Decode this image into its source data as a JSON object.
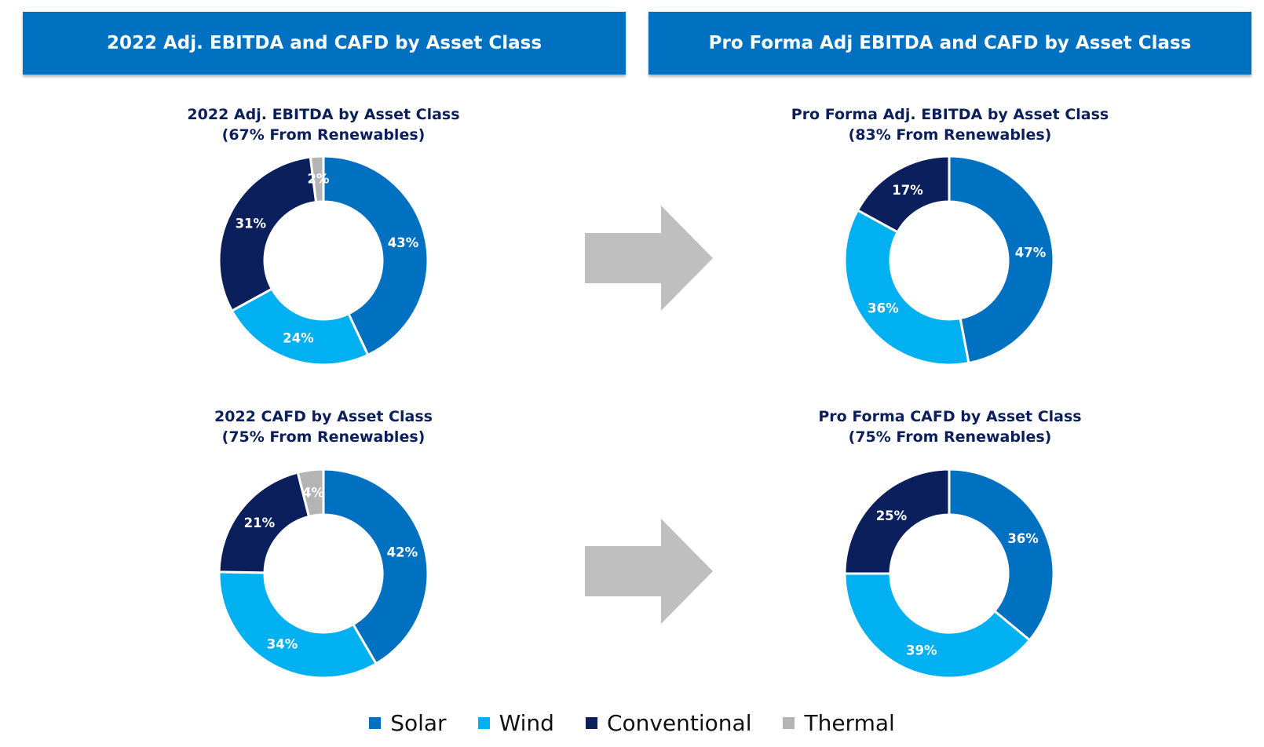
{
  "banners": {
    "left": "2022 Adj. EBITDA and CAFD by Asset Class",
    "right": "Pro Forma Adj EBITDA and CAFD by Asset Class"
  },
  "colors": {
    "Solar": "#0070C0",
    "Wind": "#00B0F0",
    "Conventional": "#0B1F5C",
    "Thermal": "#B4B4B4",
    "banner": "#0070C0",
    "arrow": "#BFBFBF"
  },
  "legend": [
    {
      "name": "Solar",
      "color": "#0070C0"
    },
    {
      "name": "Wind",
      "color": "#00B0F0"
    },
    {
      "name": "Conventional",
      "color": "#0B1F5C"
    },
    {
      "name": "Thermal",
      "color": "#B4B4B4"
    }
  ],
  "chart_data": [
    {
      "type": "pie",
      "title": "2022 Adj. EBITDA by Asset Class",
      "subtitle": "(67% From Renewables)",
      "categories": [
        "Solar",
        "Wind",
        "Conventional",
        "Thermal"
      ],
      "values": [
        43,
        24,
        31,
        2
      ],
      "labels": [
        "43%",
        "24%",
        "31%",
        "2%"
      ]
    },
    {
      "type": "pie",
      "title": "Pro Forma  Adj. EBITDA by Asset Class",
      "subtitle": "(83% From Renewables)",
      "categories": [
        "Solar",
        "Wind",
        "Conventional"
      ],
      "values": [
        47,
        36,
        17
      ],
      "labels": [
        "47%",
        "36%",
        "17%"
      ]
    },
    {
      "type": "pie",
      "title": "2022 CAFD by Asset Class",
      "subtitle": "(75% From Renewables)",
      "categories": [
        "Solar",
        "Wind",
        "Conventional",
        "Thermal"
      ],
      "values": [
        42,
        34,
        21,
        4
      ],
      "labels": [
        "42%",
        "34%",
        "21%",
        "4%"
      ]
    },
    {
      "type": "pie",
      "title": "Pro Forma CAFD by Asset Class",
      "subtitle": "(75% From Renewables)",
      "categories": [
        "Solar",
        "Wind",
        "Conventional"
      ],
      "values": [
        36,
        39,
        25
      ],
      "labels": [
        "36%",
        "39%",
        "25%"
      ]
    }
  ]
}
